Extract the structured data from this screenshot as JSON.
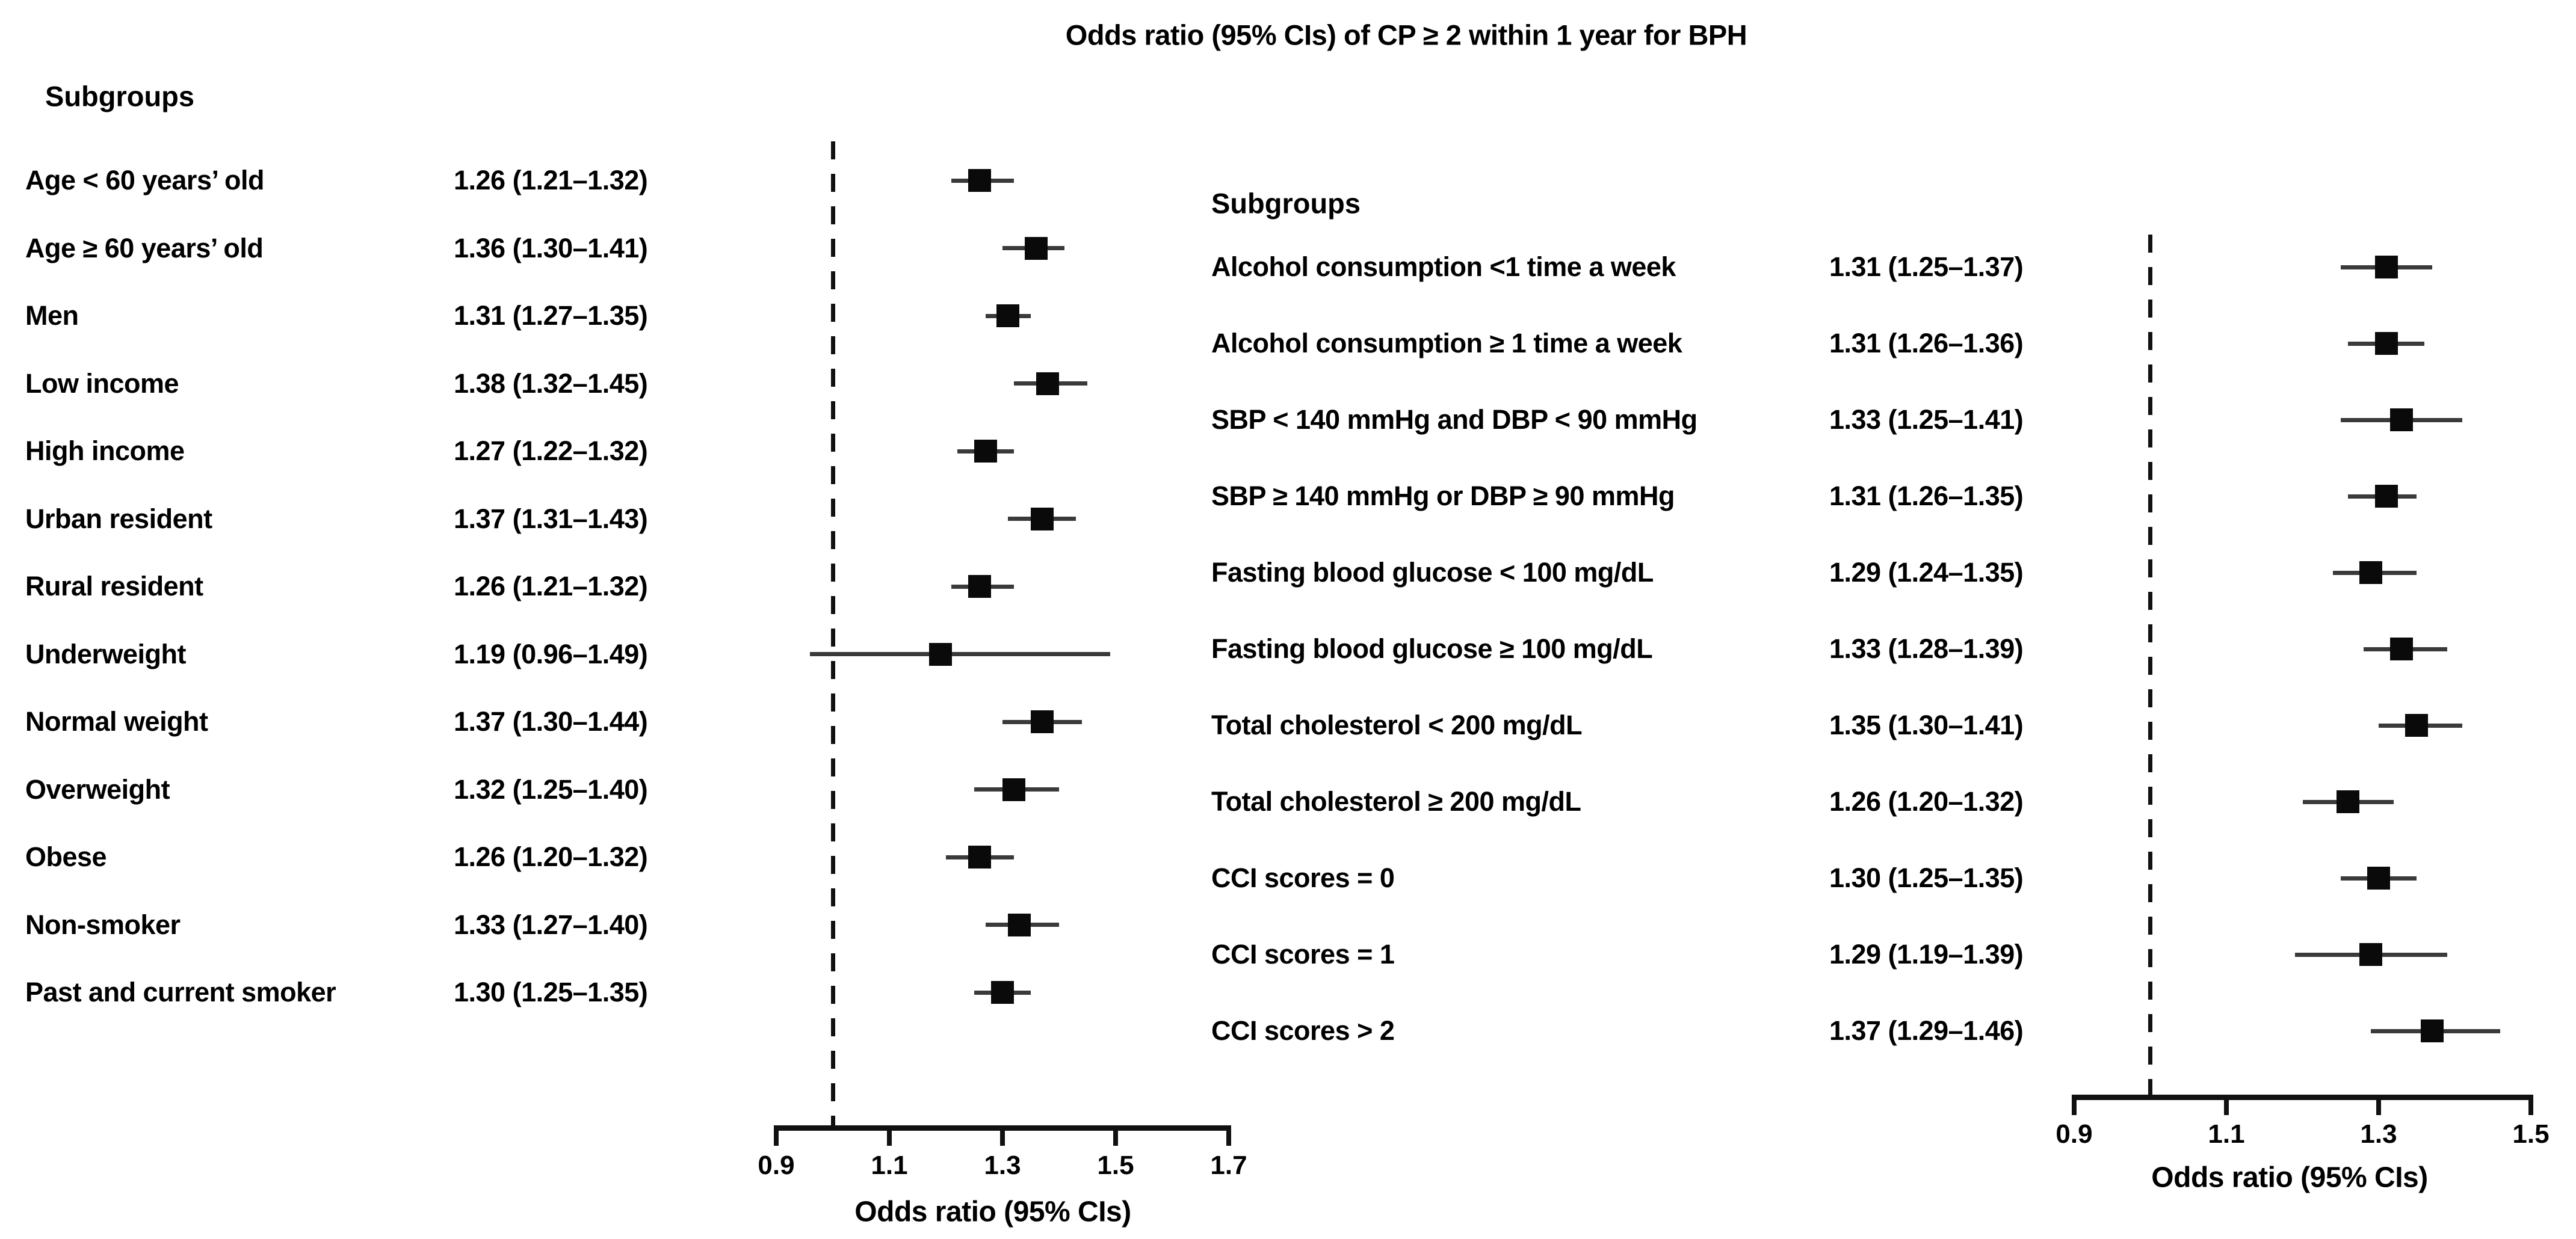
{
  "title": "Odds ratio (95% CIs) of CP ≥ 2 within 1 year for BPH",
  "chart_data": [
    {
      "type": "forest",
      "panel": "left",
      "header": "Subgroups",
      "xlabel": "Odds ratio (95% CIs)",
      "xlim": [
        0.9,
        1.7
      ],
      "x_ticks": [
        0.9,
        1.1,
        1.3,
        1.5,
        1.7
      ],
      "x_tick_labels": [
        "0.9",
        "1.1",
        "1.3",
        "1.5",
        "1.7"
      ],
      "reference_line": 1.0,
      "rows": [
        {
          "label": "Age < 60 years’ old",
          "estimate": 1.26,
          "ci_low": 1.21,
          "ci_high": 1.32,
          "text": "1.26 (1.21–1.32)"
        },
        {
          "label": "Age ≥ 60 years’ old",
          "estimate": 1.36,
          "ci_low": 1.3,
          "ci_high": 1.41,
          "text": "1.36 (1.30–1.41)"
        },
        {
          "label": "Men",
          "estimate": 1.31,
          "ci_low": 1.27,
          "ci_high": 1.35,
          "text": "1.31 (1.27–1.35)"
        },
        {
          "label": "Low income",
          "estimate": 1.38,
          "ci_low": 1.32,
          "ci_high": 1.45,
          "text": "1.38 (1.32–1.45)"
        },
        {
          "label": "High income",
          "estimate": 1.27,
          "ci_low": 1.22,
          "ci_high": 1.32,
          "text": "1.27 (1.22–1.32)"
        },
        {
          "label": "Urban resident",
          "estimate": 1.37,
          "ci_low": 1.31,
          "ci_high": 1.43,
          "text": "1.37 (1.31–1.43)"
        },
        {
          "label": "Rural resident",
          "estimate": 1.26,
          "ci_low": 1.21,
          "ci_high": 1.32,
          "text": "1.26 (1.21–1.32)"
        },
        {
          "label": "Underweight",
          "estimate": 1.19,
          "ci_low": 0.96,
          "ci_high": 1.49,
          "text": "1.19 (0.96–1.49)"
        },
        {
          "label": "Normal weight",
          "estimate": 1.37,
          "ci_low": 1.3,
          "ci_high": 1.44,
          "text": "1.37 (1.30–1.44)"
        },
        {
          "label": "Overweight",
          "estimate": 1.32,
          "ci_low": 1.25,
          "ci_high": 1.4,
          "text": "1.32 (1.25–1.40)"
        },
        {
          "label": "Obese",
          "estimate": 1.26,
          "ci_low": 1.2,
          "ci_high": 1.32,
          "text": "1.26 (1.20–1.32)"
        },
        {
          "label": "Non-smoker",
          "estimate": 1.33,
          "ci_low": 1.27,
          "ci_high": 1.4,
          "text": "1.33 (1.27–1.40)"
        },
        {
          "label": "Past and current smoker",
          "estimate": 1.3,
          "ci_low": 1.25,
          "ci_high": 1.35,
          "text": "1.30 (1.25–1.35)"
        }
      ]
    },
    {
      "type": "forest",
      "panel": "right",
      "header": "Subgroups",
      "xlabel": "Odds ratio (95% CIs)",
      "xlim": [
        0.9,
        1.5
      ],
      "x_ticks": [
        0.9,
        1.1,
        1.3,
        1.5
      ],
      "x_tick_labels": [
        "0.9",
        "1.1",
        "1.3",
        "1.5"
      ],
      "reference_line": 1.0,
      "rows": [
        {
          "label": "Alcohol consumption <1 time a week",
          "estimate": 1.31,
          "ci_low": 1.25,
          "ci_high": 1.37,
          "text": "1.31 (1.25–1.37)"
        },
        {
          "label": "Alcohol consumption ≥ 1 time a week",
          "estimate": 1.31,
          "ci_low": 1.26,
          "ci_high": 1.36,
          "text": "1.31 (1.26–1.36)"
        },
        {
          "label": "SBP < 140 mmHg and DBP < 90 mmHg",
          "estimate": 1.33,
          "ci_low": 1.25,
          "ci_high": 1.41,
          "text": "1.33 (1.25–1.41)"
        },
        {
          "label": "SBP ≥ 140 mmHg or DBP ≥ 90 mmHg",
          "estimate": 1.31,
          "ci_low": 1.26,
          "ci_high": 1.35,
          "text": "1.31 (1.26–1.35)"
        },
        {
          "label": "Fasting blood glucose < 100 mg/dL",
          "estimate": 1.29,
          "ci_low": 1.24,
          "ci_high": 1.35,
          "text": "1.29 (1.24–1.35)"
        },
        {
          "label": "Fasting blood glucose ≥ 100 mg/dL",
          "estimate": 1.33,
          "ci_low": 1.28,
          "ci_high": 1.39,
          "text": "1.33 (1.28–1.39)"
        },
        {
          "label": "Total cholesterol < 200 mg/dL",
          "estimate": 1.35,
          "ci_low": 1.3,
          "ci_high": 1.41,
          "text": "1.35 (1.30–1.41)"
        },
        {
          "label": "Total cholesterol ≥ 200 mg/dL",
          "estimate": 1.26,
          "ci_low": 1.2,
          "ci_high": 1.32,
          "text": "1.26 (1.20–1.32)"
        },
        {
          "label": "CCI scores = 0",
          "estimate": 1.3,
          "ci_low": 1.25,
          "ci_high": 1.35,
          "text": "1.30 (1.25–1.35)"
        },
        {
          "label": "CCI scores = 1",
          "estimate": 1.29,
          "ci_low": 1.19,
          "ci_high": 1.39,
          "text": "1.29 (1.19–1.39)"
        },
        {
          "label": "CCI scores > 2",
          "estimate": 1.37,
          "ci_low": 1.29,
          "ci_high": 1.46,
          "text": "1.37 (1.29–1.46)"
        }
      ]
    }
  ]
}
